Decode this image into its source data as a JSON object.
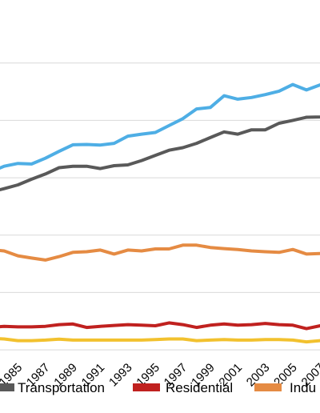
{
  "chart_data": {
    "type": "line",
    "title": "",
    "xlabel": "",
    "ylabel": "",
    "grid": "horizontal",
    "legend_position": "bottom",
    "x_ticks": [
      "1985",
      "1987",
      "1989",
      "1991",
      "1993",
      "1995",
      "1997",
      "1999",
      "2001",
      "2003",
      "2005",
      "2007"
    ],
    "x": [
      1983,
      1984,
      1985,
      1986,
      1987,
      1988,
      1989,
      1990,
      1991,
      1992,
      1993,
      1994,
      1995,
      1996,
      1997,
      1998,
      1999,
      2000,
      2001,
      2002,
      2003,
      2004,
      2005,
      2006,
      2007,
      2008
    ],
    "series": [
      {
        "name": "",
        "color": "#4EAEE5",
        "values": [
          2.2,
          2.4,
          2.5,
          2.48,
          2.68,
          2.92,
          3.15,
          3.16,
          3.14,
          3.2,
          3.45,
          3.52,
          3.58,
          3.82,
          4.06,
          4.4,
          4.45,
          4.86,
          4.74,
          4.8,
          4.9,
          5.02,
          5.25,
          5.06,
          5.24,
          5.4
        ]
      },
      {
        "name": "Transportation",
        "color": "#595959",
        "values": [
          1.5,
          1.62,
          1.75,
          1.95,
          2.13,
          2.35,
          2.4,
          2.4,
          2.32,
          2.42,
          2.45,
          2.6,
          2.78,
          2.96,
          3.05,
          3.2,
          3.4,
          3.6,
          3.52,
          3.67,
          3.67,
          3.9,
          4.0,
          4.11,
          4.12,
          4.2
        ]
      },
      {
        "name": "Residential",
        "color": "#C0211F",
        "values": [
          -3.22,
          -3.18,
          -3.2,
          -3.2,
          -3.18,
          -3.12,
          -3.1,
          -3.22,
          -3.18,
          -3.15,
          -3.12,
          -3.14,
          -3.16,
          -3.06,
          -3.12,
          -3.22,
          -3.14,
          -3.1,
          -3.14,
          -3.12,
          -3.08,
          -3.12,
          -3.14,
          -3.26,
          -3.16,
          -3.1
        ]
      },
      {
        "name": "Industrial",
        "color": "#E58B43",
        "values": [
          -0.5,
          -0.55,
          -0.72,
          -0.8,
          -0.87,
          -0.75,
          -0.6,
          -0.58,
          -0.52,
          -0.66,
          -0.52,
          -0.55,
          -0.48,
          -0.48,
          -0.35,
          -0.35,
          -0.43,
          -0.47,
          -0.5,
          -0.55,
          -0.58,
          -0.6,
          -0.5,
          -0.66,
          -0.64,
          -0.65
        ]
      },
      {
        "name": "",
        "color": "#F2C12E",
        "values": [
          -3.6,
          -3.62,
          -3.68,
          -3.68,
          -3.66,
          -3.63,
          -3.66,
          -3.66,
          -3.66,
          -3.66,
          -3.66,
          -3.66,
          -3.64,
          -3.62,
          -3.62,
          -3.68,
          -3.66,
          -3.64,
          -3.66,
          -3.66,
          -3.64,
          -3.64,
          -3.66,
          -3.72,
          -3.68,
          -3.66
        ]
      }
    ],
    "ylim": [
      -4.5,
      7.5
    ],
    "y_grid": [
      -4,
      -2,
      0,
      2,
      4,
      6
    ]
  },
  "legend": [
    {
      "label": "Transportation",
      "color": "#595959"
    },
    {
      "label": "Residential",
      "color": "#C0211F"
    },
    {
      "label": "Indu",
      "color": "#E58B43"
    }
  ]
}
